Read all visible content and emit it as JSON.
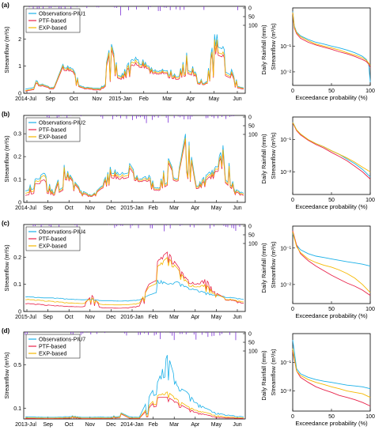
{
  "colors": {
    "observations": "#1ab0e8",
    "ptf": "#e8234a",
    "exp": "#f5b800",
    "rainfall": "#7b2fd6"
  },
  "chart_data": [
    {
      "type": "line",
      "panel_label": "(a)",
      "xlabel": "",
      "ylabel": "Streamflow (m³/s)",
      "right_ylabel": "Daily Rainfall (mm)",
      "x_ticks": [
        "2014-Jul",
        "Sep",
        "Oct",
        "Nov",
        "2015-Jan",
        "Feb",
        "Mar",
        "Apr",
        "May",
        "Jun"
      ],
      "y_ticks": [
        "0",
        "1",
        "2"
      ],
      "ylim": [
        0,
        3.2
      ],
      "rain_ticks": [
        "0",
        "50",
        "100"
      ],
      "legend": [
        "Observations-PIU1",
        "PTF-based",
        "EXP-based"
      ],
      "series": [
        {
          "name": "Observations-PIU1",
          "values": [
            0.15,
            0.5,
            0.3,
            0.2,
            1.1,
            0.9,
            0.25,
            0.2,
            0.18,
            1.9,
            0.6,
            1.2,
            1.4,
            1.0,
            0.8,
            1.0,
            0.6,
            1.5,
            0.7,
            0.35,
            2.3,
            1.6,
            0.6,
            0.2
          ]
        },
        {
          "name": "PTF-based",
          "values": [
            0.08,
            0.4,
            0.25,
            0.15,
            1.0,
            0.8,
            0.2,
            0.15,
            0.12,
            1.7,
            0.5,
            1.0,
            1.2,
            0.9,
            0.7,
            0.9,
            0.5,
            1.3,
            0.6,
            0.3,
            2.0,
            1.3,
            0.5,
            0.15
          ]
        },
        {
          "name": "EXP-based",
          "values": [
            0.1,
            0.45,
            0.28,
            0.18,
            1.05,
            0.85,
            0.22,
            0.18,
            0.15,
            1.8,
            0.55,
            1.1,
            1.3,
            0.95,
            0.75,
            0.95,
            0.55,
            1.4,
            0.65,
            0.32,
            2.1,
            1.4,
            0.55,
            0.18
          ]
        }
      ],
      "fdc": {
        "xlabel": "Exceedance probability (%)",
        "ylabel": "Streamflow (m³/s)",
        "x_ticks": [
          "0",
          "50",
          "100"
        ],
        "y_ticks": [
          "10⁻¹",
          "10⁻²"
        ],
        "y_scale": "log",
        "ylim": [
          0.003,
          3
        ],
        "x": [
          0,
          2,
          5,
          10,
          20,
          30,
          40,
          50,
          60,
          70,
          80,
          90,
          95,
          98,
          100
        ],
        "series": [
          {
            "name": "Observations-PIU1",
            "values": [
              2.2,
              0.6,
              0.35,
              0.25,
              0.18,
              0.14,
              0.12,
              0.1,
              0.085,
              0.07,
              0.055,
              0.04,
              0.03,
              0.02,
              0.004
            ]
          },
          {
            "name": "PTF-based",
            "values": [
              2.0,
              0.5,
              0.3,
              0.2,
              0.14,
              0.11,
              0.09,
              0.075,
              0.06,
              0.05,
              0.04,
              0.03,
              0.025,
              0.02,
              0.015
            ]
          },
          {
            "name": "EXP-based",
            "values": [
              2.0,
              0.55,
              0.33,
              0.23,
              0.16,
              0.12,
              0.1,
              0.085,
              0.07,
              0.055,
              0.045,
              0.035,
              0.028,
              0.022,
              0.018
            ]
          }
        ]
      }
    },
    {
      "type": "line",
      "panel_label": "(b)",
      "xlabel": "",
      "ylabel": "Streamflow (m³/s)",
      "right_ylabel": "Daily Rainfall (mm)",
      "x_ticks": [
        "2014-Jul",
        "Sep",
        "Oct",
        "Nov",
        "Dec",
        "2015-Jan",
        "Feb",
        "Mar",
        "Apr",
        "May",
        "Jun"
      ],
      "y_ticks": [
        "0",
        "0.1",
        "0.2",
        "0.3"
      ],
      "ylim": [
        0,
        0.38
      ],
      "rain_ticks": [
        "0",
        "50",
        "100"
      ],
      "legend": [
        "Observations-PIU2",
        "PTF-based",
        "EXP-based"
      ],
      "series": [
        {
          "name": "Observations-PIU2",
          "values": [
            0.05,
            0.1,
            0.13,
            0.04,
            0.17,
            0.1,
            0.05,
            0.03,
            0.07,
            0.16,
            0.12,
            0.17,
            0.1,
            0.12,
            0.06,
            0.2,
            0.1,
            0.33,
            0.07,
            0.12,
            0.15,
            0.27,
            0.06,
            0.04
          ]
        },
        {
          "name": "PTF-based",
          "values": [
            0.03,
            0.08,
            0.1,
            0.03,
            0.15,
            0.09,
            0.04,
            0.025,
            0.06,
            0.14,
            0.1,
            0.15,
            0.09,
            0.1,
            0.05,
            0.18,
            0.09,
            0.3,
            0.06,
            0.1,
            0.13,
            0.24,
            0.05,
            0.03
          ]
        },
        {
          "name": "EXP-based",
          "values": [
            0.04,
            0.09,
            0.12,
            0.035,
            0.16,
            0.095,
            0.045,
            0.028,
            0.065,
            0.15,
            0.11,
            0.16,
            0.095,
            0.11,
            0.055,
            0.19,
            0.095,
            0.31,
            0.065,
            0.11,
            0.14,
            0.25,
            0.055,
            0.035
          ]
        }
      ],
      "fdc": {
        "xlabel": "Exceedance probability (%)",
        "ylabel": "Streamflow (m³/s)",
        "x_ticks": [
          "0",
          "50",
          "100"
        ],
        "y_ticks": [
          "10⁻¹",
          "10⁻²"
        ],
        "y_scale": "log",
        "ylim": [
          0.002,
          0.5
        ],
        "x": [
          0,
          5,
          10,
          20,
          30,
          40,
          50,
          60,
          70,
          80,
          90,
          100
        ],
        "series": [
          {
            "name": "Observations-PIU2",
            "values": [
              0.35,
              0.2,
              0.15,
              0.1,
              0.075,
              0.06,
              0.045,
              0.035,
              0.025,
              0.018,
              0.012,
              0.007
            ]
          },
          {
            "name": "PTF-based",
            "values": [
              0.33,
              0.19,
              0.14,
              0.095,
              0.07,
              0.055,
              0.04,
              0.03,
              0.022,
              0.015,
              0.01,
              0.006
            ]
          },
          {
            "name": "EXP-based",
            "values": [
              0.34,
              0.2,
              0.15,
              0.1,
              0.075,
              0.06,
              0.045,
              0.035,
              0.027,
              0.02,
              0.014,
              0.01
            ]
          }
        ]
      }
    },
    {
      "type": "line",
      "panel_label": "(c)",
      "xlabel": "",
      "ylabel": "Streamflow (m³/s)",
      "right_ylabel": "Daily Rainfall (mm)",
      "x_ticks": [
        "2015-Jul",
        "Sep",
        "Oct",
        "Nov",
        "Dec",
        "2016-Jan",
        "Feb",
        "Mar",
        "Apr",
        "May",
        "Jun"
      ],
      "y_ticks": [
        "0",
        "0.1",
        "0.2"
      ],
      "ylim": [
        0,
        0.32
      ],
      "rain_ticks": [
        "0",
        "50",
        "100"
      ],
      "legend": [
        "Observations-PIU4",
        "PTF-based",
        "EXP-based"
      ],
      "series": [
        {
          "name": "Observations-PIU4",
          "values": [
            0.055,
            0.053,
            0.05,
            0.05,
            0.048,
            0.045,
            0.043,
            0.045,
            0.04,
            0.04,
            0.038,
            0.04,
            0.042,
            0.06,
            0.12,
            0.1,
            0.11,
            0.09,
            0.08,
            0.07,
            0.06,
            0.055,
            0.05,
            0.045
          ]
        },
        {
          "name": "PTF-based",
          "values": [
            0.03,
            0.028,
            0.025,
            0.022,
            0.02,
            0.018,
            0.017,
            0.06,
            0.014,
            0.013,
            0.012,
            0.015,
            0.02,
            0.1,
            0.19,
            0.22,
            0.17,
            0.12,
            0.1,
            0.12,
            0.07,
            0.05,
            0.04,
            0.03
          ]
        },
        {
          "name": "EXP-based",
          "values": [
            0.045,
            0.043,
            0.04,
            0.037,
            0.034,
            0.031,
            0.029,
            0.05,
            0.026,
            0.025,
            0.024,
            0.026,
            0.03,
            0.09,
            0.17,
            0.2,
            0.16,
            0.11,
            0.09,
            0.1,
            0.065,
            0.05,
            0.042,
            0.035
          ]
        }
      ],
      "fdc": {
        "xlabel": "Exceedance probability (%)",
        "ylabel": "Streamflow (m³/s)",
        "x_ticks": [
          "0",
          "50",
          "100"
        ],
        "y_ticks": [
          "10⁻¹",
          "10⁻²"
        ],
        "y_scale": "log",
        "ylim": [
          0.003,
          0.4
        ],
        "x": [
          0,
          5,
          10,
          20,
          30,
          40,
          50,
          60,
          70,
          80,
          90,
          100
        ],
        "series": [
          {
            "name": "Observations-PIU4",
            "values": [
              0.25,
              0.12,
              0.09,
              0.07,
              0.06,
              0.055,
              0.05,
              0.046,
              0.042,
              0.039,
              0.036,
              0.032
            ]
          },
          {
            "name": "PTF-based",
            "values": [
              0.3,
              0.12,
              0.07,
              0.045,
              0.032,
              0.024,
              0.018,
              0.014,
              0.011,
              0.009,
              0.007,
              0.005
            ]
          },
          {
            "name": "EXP-based",
            "values": [
              0.28,
              0.11,
              0.075,
              0.05,
              0.04,
              0.034,
              0.03,
              0.025,
              0.02,
              0.015,
              0.01,
              0.006
            ]
          }
        ]
      }
    },
    {
      "type": "line",
      "panel_label": "(d)",
      "xlabel": "",
      "ylabel": "Streamflow (m³/s)",
      "right_ylabel": "Daily Rainfall (mm)",
      "x_ticks": [
        "2013-Jul",
        "Sep",
        "Oct",
        "Nov",
        "Dec",
        "2014-Jan",
        "Feb",
        "Mar",
        "Apr",
        "May",
        "Jun"
      ],
      "y_ticks": [
        "0.1",
        "0.5"
      ],
      "ylim": [
        0,
        0.8
      ],
      "rain_ticks": [
        "0",
        "50",
        "100"
      ],
      "legend": [
        "Observations-PIU7",
        "PTF-based",
        "EXP-based"
      ],
      "series": [
        {
          "name": "Observations-PIU7",
          "values": [
            0.02,
            0.02,
            0.015,
            0.015,
            0.02,
            0.03,
            0.015,
            0.015,
            0.02,
            0.015,
            0.06,
            0.02,
            0.015,
            0.2,
            0.35,
            0.6,
            0.3,
            0.25,
            0.15,
            0.1,
            0.06,
            0.04,
            0.03,
            0.02
          ]
        },
        {
          "name": "PTF-based",
          "values": [
            0.005,
            0.005,
            0.004,
            0.004,
            0.006,
            0.02,
            0.004,
            0.004,
            0.006,
            0.004,
            0.05,
            0.006,
            0.004,
            0.1,
            0.2,
            0.2,
            0.15,
            0.1,
            0.06,
            0.04,
            0.02,
            0.01,
            0.008,
            0.005
          ]
        },
        {
          "name": "EXP-based",
          "values": [
            0.01,
            0.01,
            0.008,
            0.008,
            0.01,
            0.025,
            0.008,
            0.008,
            0.01,
            0.008,
            0.055,
            0.01,
            0.008,
            0.12,
            0.22,
            0.25,
            0.18,
            0.12,
            0.08,
            0.06,
            0.035,
            0.02,
            0.015,
            0.01
          ]
        }
      ],
      "fdc": {
        "xlabel": "Exceedance probability (%)",
        "ylabel": "Streamflow (m³/s)",
        "x_ticks": [
          "0",
          "50",
          "100"
        ],
        "y_ticks": [
          "10⁻¹",
          "10⁻²"
        ],
        "y_scale": "log",
        "ylim": [
          0.002,
          1.0
        ],
        "x": [
          0,
          5,
          10,
          20,
          30,
          40,
          50,
          60,
          70,
          80,
          90,
          100
        ],
        "series": [
          {
            "name": "Observations-PIU7",
            "values": [
              0.6,
              0.06,
              0.04,
              0.03,
              0.025,
              0.022,
              0.02,
              0.018,
              0.016,
              0.015,
              0.014,
              0.012
            ]
          },
          {
            "name": "PTF-based",
            "values": [
              0.25,
              0.05,
              0.03,
              0.02,
              0.014,
              0.011,
              0.009,
              0.007,
              0.006,
              0.005,
              0.004,
              0.003
            ]
          },
          {
            "name": "EXP-based",
            "values": [
              0.3,
              0.05,
              0.035,
              0.025,
              0.02,
              0.017,
              0.014,
              0.012,
              0.01,
              0.009,
              0.008,
              0.006
            ]
          }
        ]
      }
    }
  ]
}
